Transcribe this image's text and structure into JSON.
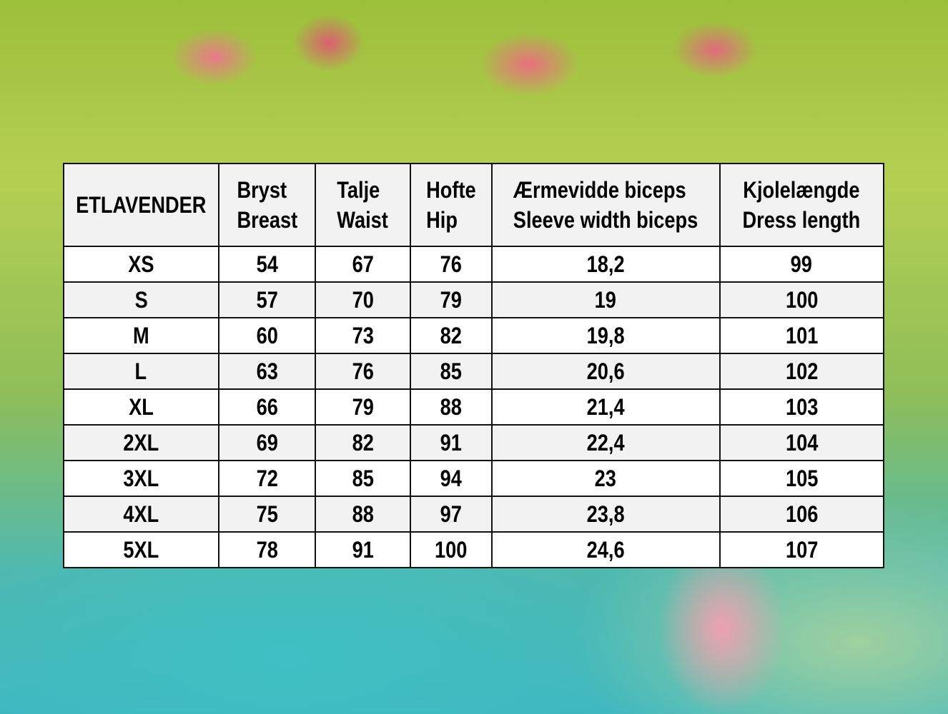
{
  "table": {
    "headers": [
      {
        "line1": "ETLAVENDER",
        "line2": ""
      },
      {
        "line1": "Bryst",
        "line2": "Breast"
      },
      {
        "line1": "Talje",
        "line2": "Waist"
      },
      {
        "line1": "Hofte",
        "line2": "Hip"
      },
      {
        "line1": "Ærmevidde biceps",
        "line2": "Sleeve width biceps"
      },
      {
        "line1": "Kjolelængde",
        "line2": "Dress length"
      }
    ],
    "rows": [
      [
        "XS",
        "54",
        "67",
        "76",
        "18,2",
        "99"
      ],
      [
        "S",
        "57",
        "70",
        "79",
        "19",
        "100"
      ],
      [
        "M",
        "60",
        "73",
        "82",
        "19,8",
        "101"
      ],
      [
        "L",
        "63",
        "76",
        "85",
        "20,6",
        "102"
      ],
      [
        "XL",
        "66",
        "79",
        "88",
        "21,4",
        "103"
      ],
      [
        "2XL",
        "69",
        "82",
        "91",
        "22,4",
        "104"
      ],
      [
        "3XL",
        "72",
        "85",
        "94",
        "23",
        "105"
      ],
      [
        "4XL",
        "75",
        "88",
        "97",
        "23,8",
        "106"
      ],
      [
        "5XL",
        "78",
        "91",
        "100",
        "24,6",
        "107"
      ]
    ]
  }
}
